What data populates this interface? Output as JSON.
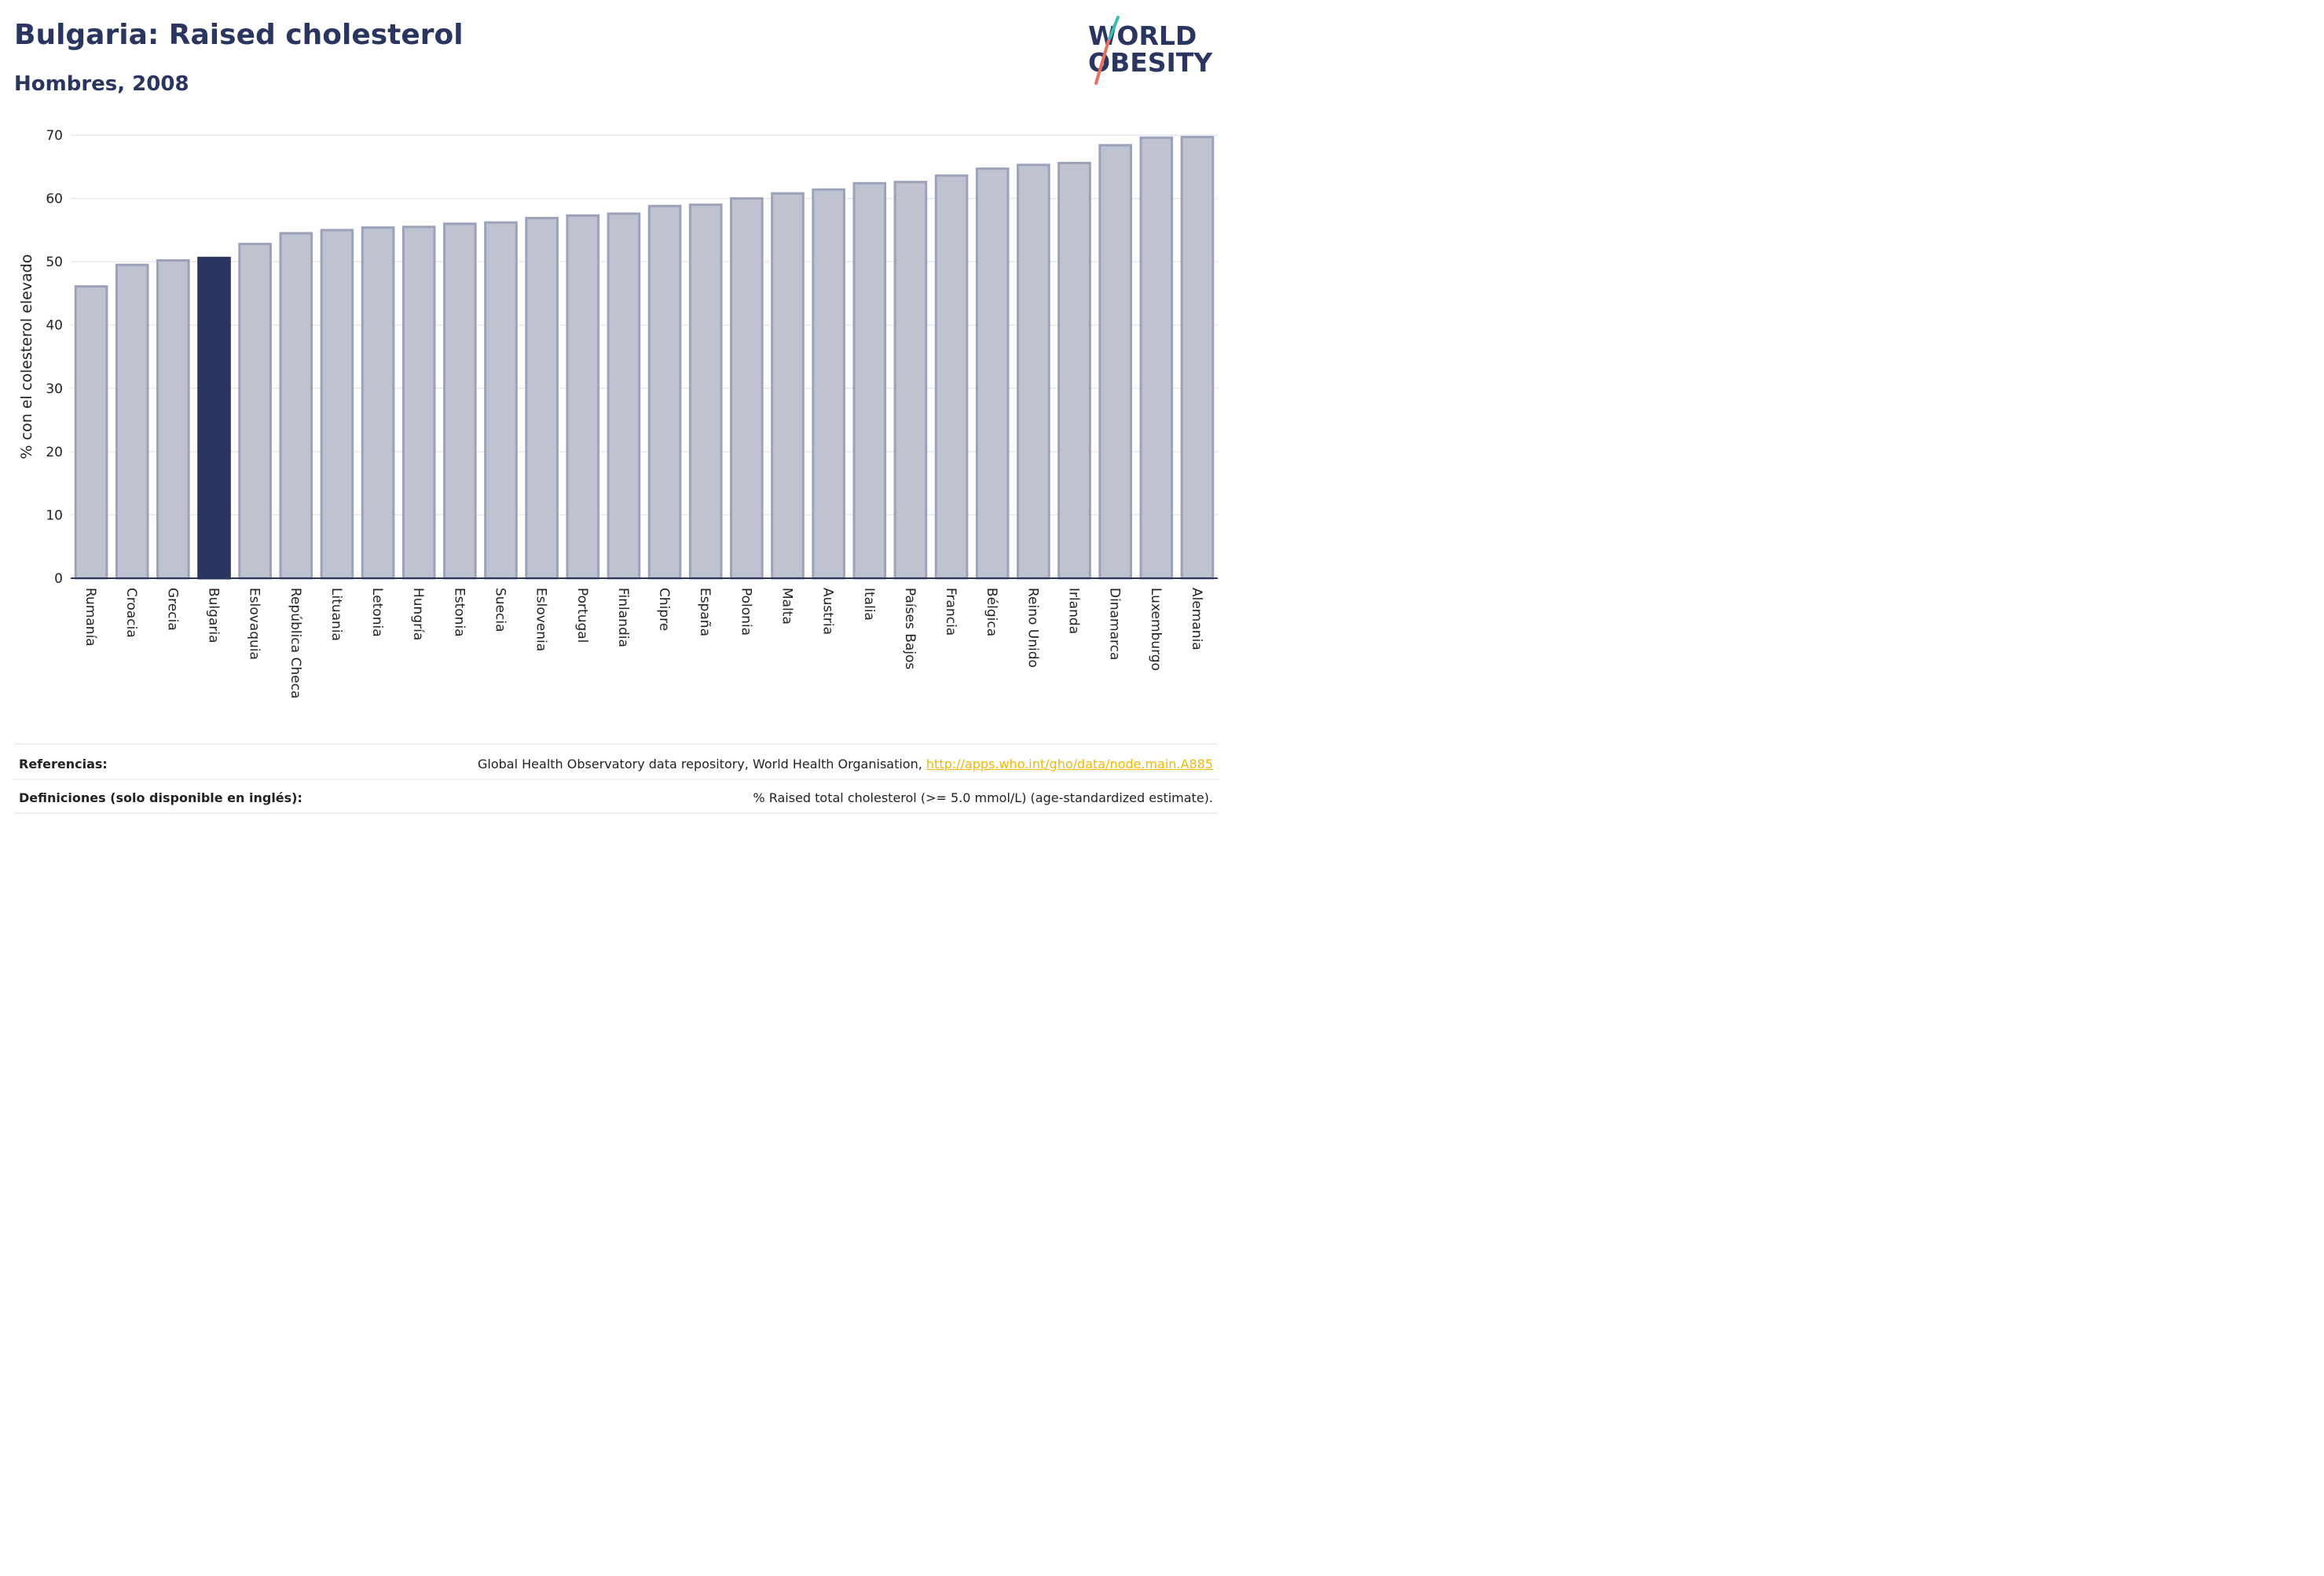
{
  "header": {
    "title": "Bulgaria: Raised cholesterol",
    "subtitle": "Hombres, 2008"
  },
  "logo": {
    "line1": "WORLD",
    "line2": "OBESITY",
    "accent_teal": "#3dbbb5",
    "accent_coral": "#e8705f"
  },
  "chart_data": {
    "type": "bar",
    "ylabel": "% con el colesterol elevado",
    "ylim": [
      0,
      70
    ],
    "yticks": [
      0,
      10,
      20,
      30,
      40,
      50,
      60,
      70
    ],
    "grid": true,
    "highlight": "Bulgaria",
    "colors": {
      "bar": "#bfc3d0",
      "bar_border": "#9ba2ba",
      "highlight": "#2b3660",
      "grid": "#e7e9ef",
      "axis": "#2b3660"
    },
    "categories": [
      "Rumanía",
      "Croacia",
      "Grecia",
      "Bulgaria",
      "Eslovaquia",
      "República Checa",
      "Lituania",
      "Letonia",
      "Hungría",
      "Estonia",
      "Suecia",
      "Eslovenia",
      "Portugal",
      "Finlandia",
      "Chipre",
      "España",
      "Polonia",
      "Malta",
      "Austria",
      "Italia",
      "Países Bajos",
      "Francia",
      "Bélgica",
      "Reino Unido",
      "Irlanda",
      "Dinamarca",
      "Luxemburgo",
      "Alemania"
    ],
    "values": [
      46.1,
      49.5,
      50.2,
      50.6,
      52.8,
      54.5,
      55.0,
      55.4,
      55.5,
      56.0,
      56.2,
      56.9,
      57.3,
      57.6,
      58.8,
      59.0,
      60.0,
      60.8,
      61.4,
      62.4,
      62.6,
      63.6,
      64.7,
      65.3,
      65.6,
      68.4,
      69.6,
      69.7
    ]
  },
  "footer": {
    "references_label": "Referencias:",
    "references_text": "Global Health Observatory data repository, World Health Organisation, ",
    "references_link": "http://apps.who.int/gho/data/node.main.A885",
    "definitions_label": "Definiciones (solo disponible en inglés):",
    "definitions_text": "% Raised total cholesterol (>= 5.0 mmol/L) (age-standardized estimate)."
  }
}
